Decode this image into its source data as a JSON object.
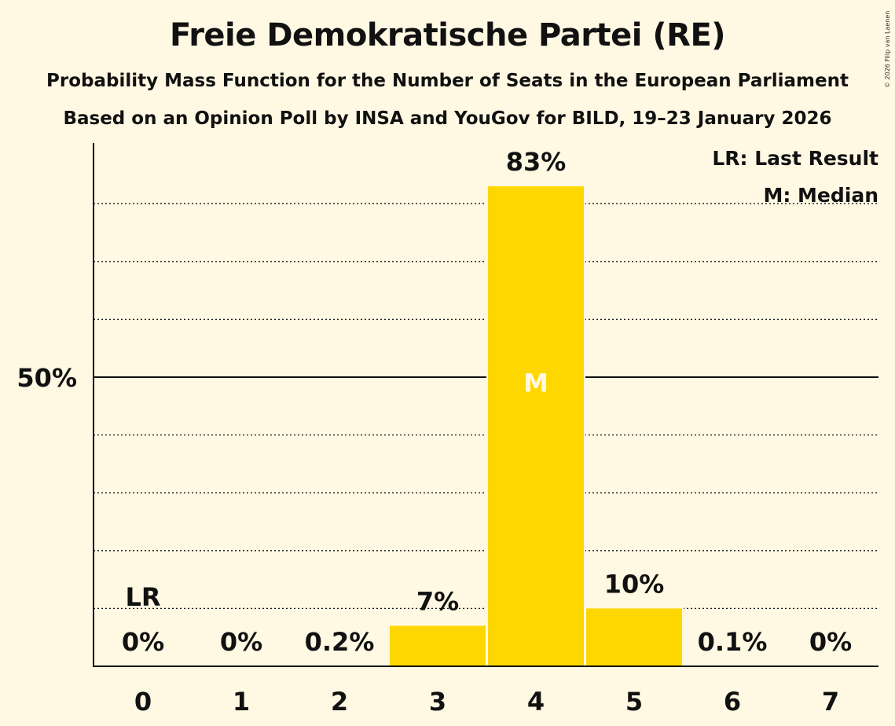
{
  "colors": {
    "background": "#FFF8E2",
    "bar": "#FFD700",
    "text": "#111111",
    "median_label": "#FFF8E2"
  },
  "copyright": "© 2026 Filip van Laenen",
  "chart_data": {
    "type": "bar",
    "title": "Freie Demokratische Partei (RE)",
    "subtitle": "Probability Mass Function for the Number of Seats in the European Parliament",
    "subtitle2": "Based on an Opinion Poll by INSA and YouGov for BILD, 19–23 January 2026",
    "xlabel": "",
    "ylabel": "",
    "categories": [
      "0",
      "1",
      "2",
      "3",
      "4",
      "5",
      "6",
      "7"
    ],
    "values": [
      0,
      0,
      0.2,
      7,
      83,
      10,
      0.1,
      0
    ],
    "value_labels": [
      "0%",
      "0%",
      "0.2%",
      "7%",
      "83%",
      "10%",
      "0.1%",
      "0%"
    ],
    "ylim": [
      0,
      90
    ],
    "y_gridlines_dotted": [
      10,
      20,
      30,
      40,
      60,
      70,
      80
    ],
    "y_gridline_solid": 50,
    "y_tick_labels": [
      {
        "value": 50,
        "label": "50%"
      }
    ],
    "markers": [
      {
        "category": "0",
        "label": "LR"
      },
      {
        "category": "4",
        "label": "M"
      }
    ],
    "legend": {
      "position": "top-right",
      "entries": [
        "LR: Last Result",
        "M: Median"
      ]
    }
  }
}
